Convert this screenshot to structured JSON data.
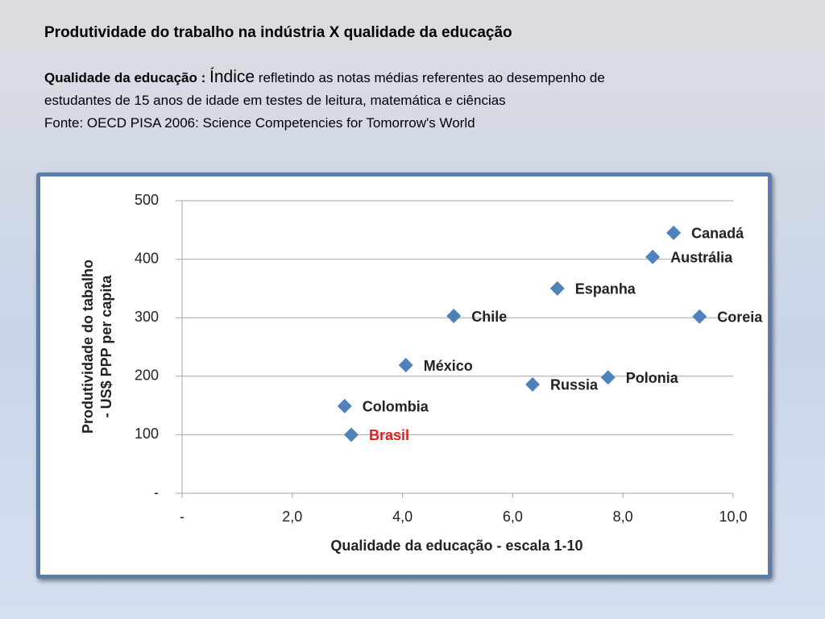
{
  "header": {
    "title": "Produtividade do trabalho na indústria X  qualidade da educação",
    "label": "Qualidade da educação :",
    "lead": "Índice",
    "text_lines": [
      "refletindo as notas médias referentes ao desempenho de",
      "estudantes de 15 anos de idade em testes de leitura, matemática  e ciências"
    ],
    "source": "Fonte: OECD PISA 2006: Science Competencies for Tomorrow's World"
  },
  "chart_data": {
    "type": "scatter",
    "x_label": "Qualidade da educação - escala 1-10",
    "y_label": [
      "Produtividade do tabalho",
      "- US$ PPP per capita"
    ],
    "point_labels": [
      "Canadá",
      "Austrália",
      "Espanha",
      "Chile",
      "Coreia",
      "México",
      "Russia",
      "Polonia",
      "Colombia",
      "Brasil"
    ],
    "label_colors": [
      "#222222",
      "#222222",
      "#222222",
      "#222222",
      "#222222",
      "#222222",
      "#222222",
      "#222222",
      "#222222",
      "#e02020"
    ],
    "x": [
      8.92,
      8.54,
      6.81,
      4.93,
      9.39,
      4.06,
      6.36,
      7.73,
      2.95,
      3.07
    ],
    "values": [
      445,
      404,
      350,
      303,
      302,
      219,
      186,
      198,
      149,
      100
    ],
    "color": "#4f81bd",
    "xlim": [
      0,
      10
    ],
    "xticks": [
      {
        "value": 0,
        "label": "-"
      },
      {
        "value": 2,
        "label": "2,0"
      },
      {
        "value": 4,
        "label": "4,0"
      },
      {
        "value": 6,
        "label": "6,0"
      },
      {
        "value": 8,
        "label": "8,0"
      },
      {
        "value": 10,
        "label": "10,0"
      }
    ],
    "ylim": [
      0,
      500
    ],
    "yticks": [
      {
        "value": 0,
        "label": "-"
      },
      100,
      200,
      300,
      400,
      500
    ],
    "grid": true
  }
}
